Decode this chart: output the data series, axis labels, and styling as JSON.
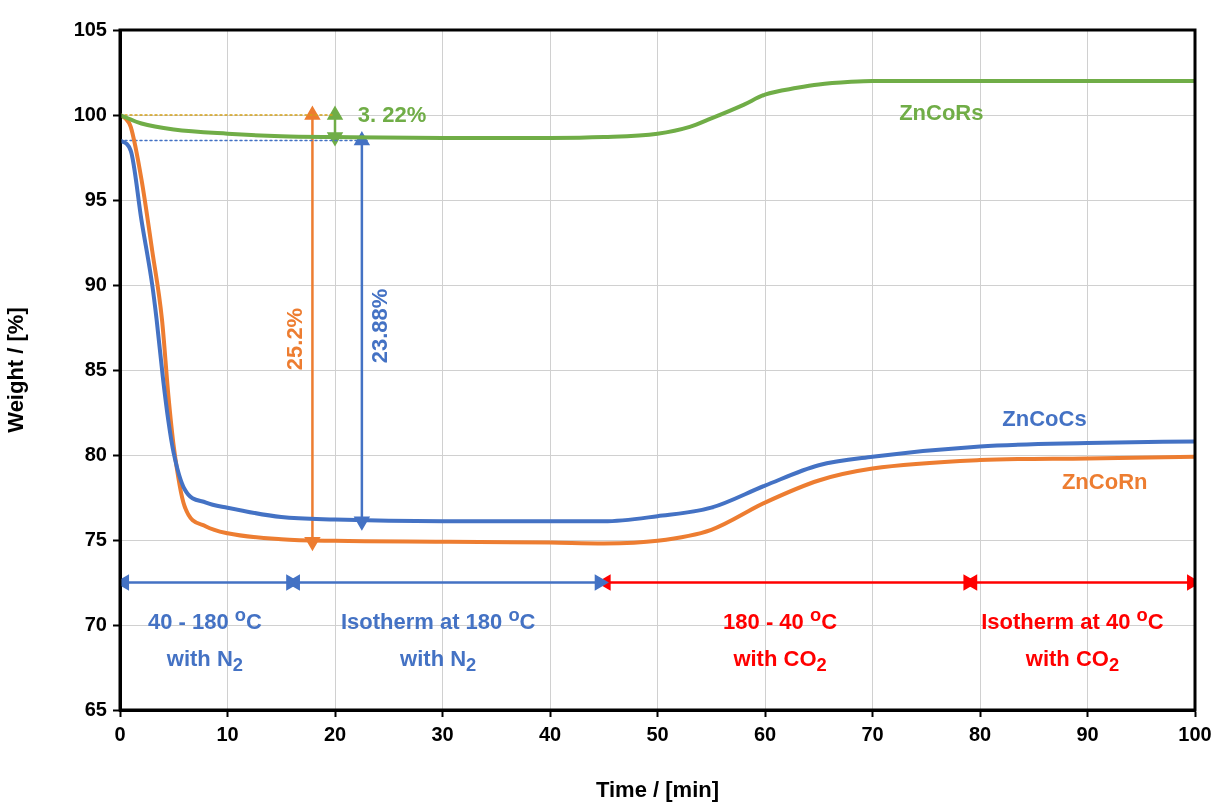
{
  "chart_data": {
    "type": "line",
    "xlabel": "Time / [min]",
    "ylabel": "Weight / [%]",
    "xlim": [
      0,
      100
    ],
    "xticks": [
      0,
      10,
      20,
      30,
      40,
      50,
      60,
      70,
      80,
      90,
      100
    ],
    "ylim": [
      65,
      105
    ],
    "yticks": [
      65,
      70,
      75,
      80,
      85,
      90,
      95,
      100,
      105
    ],
    "grid": true,
    "marker": "none",
    "line_style": "solid",
    "series": [
      {
        "name": "ZnCoRs",
        "color": "#70ad47",
        "x": [
          0,
          2,
          5,
          10,
          15,
          20,
          30,
          40,
          45,
          50,
          53,
          55,
          58,
          60,
          63,
          65,
          68,
          70,
          80,
          90,
          100
        ],
        "values": [
          100,
          99.5,
          99.15,
          98.9,
          98.75,
          98.7,
          98.65,
          98.65,
          98.7,
          98.9,
          99.3,
          99.8,
          100.6,
          101.2,
          101.6,
          101.8,
          101.95,
          102,
          102,
          102,
          102
        ]
      },
      {
        "name": "ZnCoCs",
        "color": "#4472c4",
        "x": [
          0,
          1,
          2,
          3,
          3.4,
          4,
          4.5,
          5,
          6,
          8,
          10,
          15,
          20,
          30,
          40,
          45,
          50,
          55,
          60,
          65,
          70,
          80,
          90,
          100
        ],
        "values": [
          98.5,
          97.9,
          93.8,
          90,
          88,
          84.5,
          82,
          80.1,
          78,
          77.2,
          76.9,
          76.35,
          76.2,
          76.1,
          76.1,
          76.1,
          76.4,
          76.9,
          78.2,
          79.4,
          79.9,
          80.5,
          80.7,
          80.8
        ]
      },
      {
        "name": "ZnCoRn",
        "color": "#ed7d31",
        "x": [
          0,
          0.5,
          1,
          2,
          3,
          3.9,
          4.5,
          5,
          6,
          8,
          10,
          15,
          20,
          30,
          40,
          45,
          50,
          55,
          60,
          65,
          70,
          80,
          90,
          100
        ],
        "values": [
          100,
          99.8,
          99.3,
          96.2,
          92,
          88,
          83.5,
          80.5,
          77,
          75.8,
          75.4,
          75.05,
          74.95,
          74.9,
          74.85,
          74.8,
          74.95,
          75.6,
          77.2,
          78.5,
          79.2,
          79.7,
          79.8,
          79.9
        ]
      },
      {
        "type": "line",
        "color": "#d4a017",
        "line_style": "dotted",
        "x": [
          0,
          20
        ],
        "values": [
          100,
          100
        ]
      },
      {
        "type": "line",
        "color": "#4472c4",
        "line_style": "dotted",
        "x": [
          0,
          23
        ],
        "values": [
          98.5,
          98.5
        ]
      },
      {
        "type": "line",
        "color": "#ed7d31",
        "marker": "triangle",
        "x": [
          17.9,
          17.9
        ],
        "values": [
          100,
          74.9
        ]
      },
      {
        "type": "line",
        "color": "#4472c4",
        "marker": "triangle",
        "x": [
          22.5,
          22.5
        ],
        "values": [
          98.5,
          76.1
        ]
      },
      {
        "type": "line",
        "color": "#70ad47",
        "marker": "triangle",
        "x": [
          20,
          20
        ],
        "values": [
          100,
          98.7
        ]
      },
      {
        "type": "line",
        "color": "#4472c4",
        "marker": "triangle",
        "x": [
          0.4,
          15.9
        ],
        "values": [
          72.5,
          72.5
        ]
      },
      {
        "type": "line",
        "color": "#4472c4",
        "marker": "triangle",
        "x": [
          16.3,
          44.6
        ],
        "values": [
          72.5,
          72.5
        ]
      },
      {
        "type": "line",
        "color": "#ff0000",
        "marker": "triangle",
        "x": [
          45.2,
          78.9
        ],
        "values": [
          72.5,
          72.5
        ]
      },
      {
        "type": "line",
        "color": "#ff0000",
        "marker": "triangle",
        "x": [
          79.3,
          99.7
        ],
        "values": [
          72.5,
          72.5
        ]
      }
    ],
    "annotations": [
      "25.2%",
      "23.88%",
      "3. 22%",
      "40 - 180 $^{o}$C",
      "with N$_{2}$",
      "Isotherm at 180 $^{o}$C",
      "with N$_{2}$",
      "180 - 40 $^{o}$C",
      "with CO$_{2}$",
      "Isotherm at 40 $^{o}$C",
      "with CO$_{2}$"
    ]
  }
}
